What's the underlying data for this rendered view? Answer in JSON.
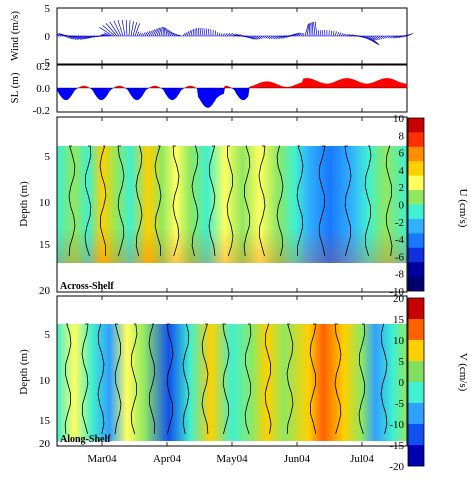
{
  "chart_data": [
    {
      "type": "line",
      "variant": "stick-plot",
      "ylabel": "Wind (m/s)",
      "ylim": [
        -5,
        5
      ],
      "yticks": [
        "5",
        "0",
        "-5"
      ],
      "series_color": "#0000cc",
      "note": "Wind vector stick plot; monthly ticks Mar04–Jul04"
    },
    {
      "type": "area",
      "ylabel": "SL (m)",
      "ylim": [
        -0.2,
        0.2
      ],
      "yticks": [
        "0.2",
        "0.0",
        "-0.2"
      ],
      "positive_color": "#ff0000",
      "negative_color": "#0000ff"
    },
    {
      "type": "heatmap",
      "panel_label": "Across-Shelf",
      "ylabel": "Depth (m)",
      "yticks": [
        "5",
        "10",
        "15",
        "20"
      ],
      "ylim": [
        20,
        3
      ],
      "colorbar_label": "U (cm/s)",
      "colorbar_ticks": [
        "10",
        "8",
        "6",
        "4",
        "2",
        "0",
        "-2",
        "-4",
        "-6",
        "-8",
        "-10"
      ],
      "colorbar_colors": [
        "#c80000",
        "#ff3000",
        "#ff8c00",
        "#ffd000",
        "#ffff60",
        "#90e860",
        "#40f0d0",
        "#30b0ff",
        "#1878ff",
        "#1030e0",
        "#0000a0",
        "#000070"
      ]
    },
    {
      "type": "heatmap",
      "panel_label": "Along-Shelf",
      "ylabel": "Depth (m)",
      "yticks": [
        "5",
        "10",
        "15",
        "20"
      ],
      "ylim": [
        20,
        3
      ],
      "colorbar_label": "V (cm/s)",
      "colorbar_ticks": [
        "20",
        "15",
        "10",
        "5",
        "0",
        "-5",
        "-10",
        "-15",
        "-20"
      ],
      "colorbar_colors": [
        "#c80000",
        "#ff6000",
        "#ffd000",
        "#80e060",
        "#40f0d0",
        "#30a0ff",
        "#1050f0",
        "#0000b0"
      ]
    }
  ],
  "x_axis": {
    "ticks": [
      "Mar04",
      "Apr04",
      "May04",
      "Jun04",
      "Jul04"
    ]
  }
}
